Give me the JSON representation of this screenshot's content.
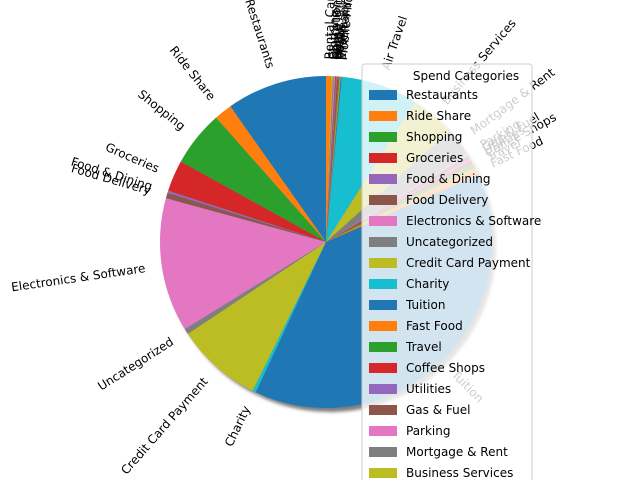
{
  "chart_data": {
    "type": "pie",
    "title": "",
    "legend": {
      "title": "Spend Categories",
      "placement": "right",
      "entries": [
        "Restaurants",
        "Ride Share",
        "Shopping",
        "Groceries",
        "Food & Dining",
        "Food Delivery",
        "Electronics & Software",
        "Uncategorized",
        "Credit Card Payment",
        "Charity",
        "Tuition",
        "Fast Food",
        "Travel",
        "Coffee Shops",
        "Utilities",
        "Gas & Fuel",
        "Parking",
        "Mortgage & Rent",
        "Business Services"
      ]
    },
    "start_angle_deg": 90,
    "shadow": true,
    "rotated_labels": true,
    "slices": [
      {
        "label": "Restaurants",
        "value": 9.0,
        "color": "#1f77b4"
      },
      {
        "label": "Ride Share",
        "value": 1.6,
        "color": "#ff7f0e"
      },
      {
        "label": "Shopping",
        "value": 5.0,
        "color": "#2ca02c"
      },
      {
        "label": "Groceries",
        "value": 2.8,
        "color": "#d62728"
      },
      {
        "label": "Food & Dining",
        "value": 0.2,
        "color": "#9467bd"
      },
      {
        "label": "Food Delivery",
        "value": 0.5,
        "color": "#8c564b"
      },
      {
        "label": "Electronics & Software",
        "value": 12.0,
        "color": "#e377c2"
      },
      {
        "label": "Uncategorized",
        "value": 0.5,
        "color": "#7f7f7f"
      },
      {
        "label": "Credit Card Payment",
        "value": 7.7,
        "color": "#bcbd22"
      },
      {
        "label": "Charity",
        "value": 0.3,
        "color": "#17becf"
      },
      {
        "label": "Tuition",
        "value": 35.5,
        "color": "#1f77b4"
      },
      {
        "label": "Fast Food",
        "value": 0.7,
        "color": "#ff7f0e"
      },
      {
        "label": "Travel",
        "value": 0.4,
        "color": "#2ca02c"
      },
      {
        "label": "Coffee Shops",
        "value": 0.3,
        "color": "#d62728"
      },
      {
        "label": "Utilities",
        "value": 0.2,
        "color": "#9467bd"
      },
      {
        "label": "Gas & Fuel",
        "value": 0.3,
        "color": "#8c564b"
      },
      {
        "label": "Parking",
        "value": 0.2,
        "color": "#e377c2"
      },
      {
        "label": "Mortgage & Rent",
        "value": 2.5,
        "color": "#7f7f7f"
      },
      {
        "label": "Business Services",
        "value": 4.0,
        "color": "#bcbd22"
      },
      {
        "label": "Air Travel",
        "value": 6.9,
        "color": "#17becf"
      },
      {
        "label": "Mobile Phone",
        "value": 0.1,
        "color": "#1f77b4"
      },
      {
        "label": "Entertainment",
        "value": 0.1,
        "color": "#ff7f0e"
      },
      {
        "label": "Pharmacy",
        "value": 0.1,
        "color": "#2ca02c"
      },
      {
        "label": "Books",
        "value": 0.1,
        "color": "#d62728"
      },
      {
        "label": "Hotel",
        "value": 0.1,
        "color": "#9467bd"
      },
      {
        "label": "Gym",
        "value": 0.1,
        "color": "#8c564b"
      },
      {
        "label": "Home Improvement",
        "value": 0.1,
        "color": "#e377c2"
      },
      {
        "label": "Education",
        "value": 0.1,
        "color": "#7f7f7f"
      },
      {
        "label": "Clothing",
        "value": 0.1,
        "color": "#bcbd22"
      },
      {
        "label": "Rental Car",
        "value": 0.5,
        "color": "#ff7f0e"
      }
    ]
  }
}
